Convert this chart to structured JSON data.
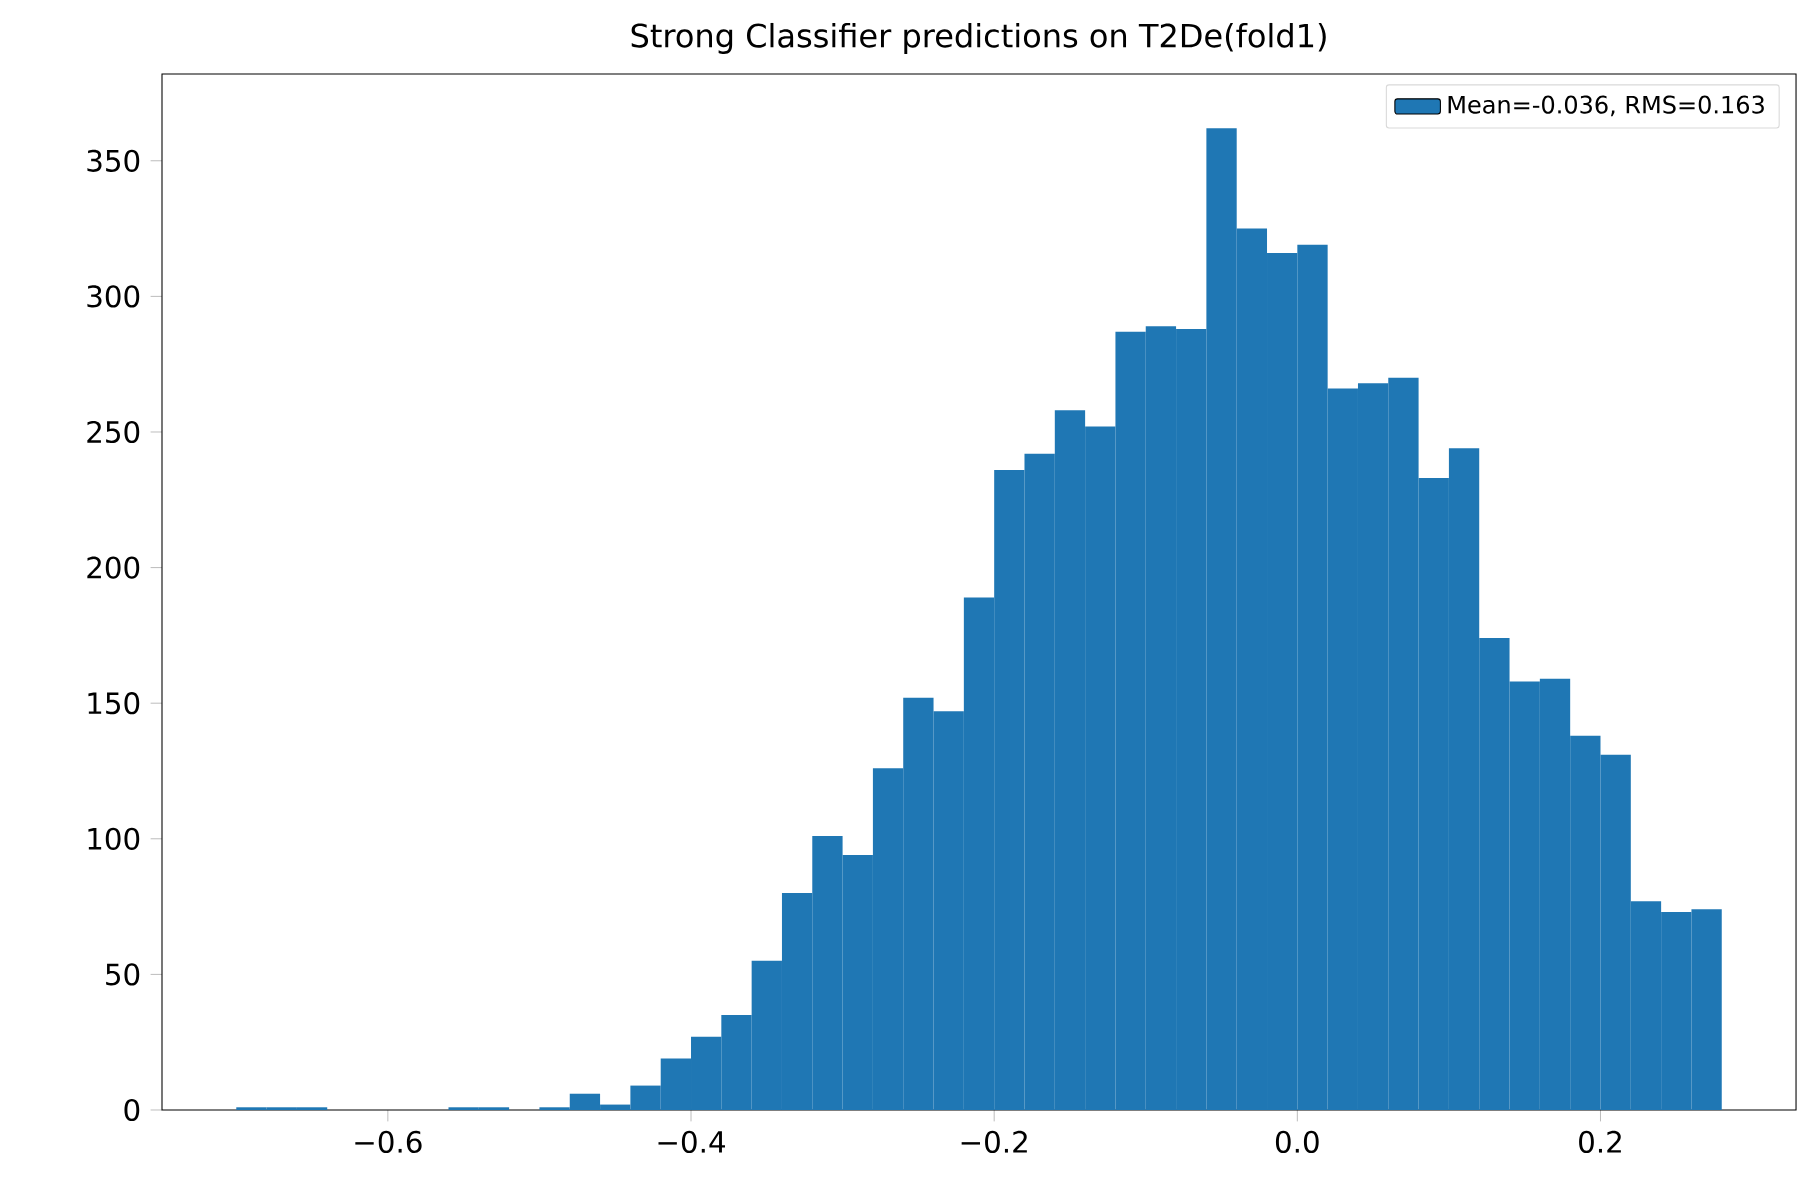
{
  "chart_data": {
    "type": "histogram",
    "title": "Strong Classifier predictions on T2De(fold1)",
    "bins": [
      -0.7,
      -0.68,
      -0.66,
      -0.64,
      -0.62,
      -0.6,
      -0.58,
      -0.56,
      -0.54,
      -0.52,
      -0.5,
      -0.48,
      -0.46,
      -0.44,
      -0.42,
      -0.4,
      -0.38,
      -0.36,
      -0.34,
      -0.32,
      -0.3,
      -0.28,
      -0.26,
      -0.24,
      -0.22,
      -0.2,
      -0.18,
      -0.16,
      -0.14,
      -0.12,
      -0.1,
      -0.08,
      -0.06,
      -0.04,
      -0.02,
      0.0,
      0.02,
      0.04,
      0.06,
      0.08,
      0.1,
      0.12,
      0.14,
      0.16,
      0.18,
      0.2,
      0.22,
      0.24,
      0.26,
      0.28
    ],
    "series": [
      {
        "name": "Mean=-0.036, RMS=0.163",
        "color": "#1f77b4",
        "values": [
          1,
          1,
          1,
          0,
          0,
          0,
          0,
          1,
          1,
          0,
          1,
          6,
          2,
          9,
          19,
          27,
          35,
          55,
          80,
          101,
          94,
          126,
          152,
          147,
          189,
          236,
          242,
          258,
          252,
          287,
          289,
          288,
          362,
          325,
          316,
          319,
          266,
          268,
          270,
          233,
          244,
          174,
          158,
          159,
          138,
          131,
          77,
          73,
          74
        ]
      }
    ],
    "xlim": [
      -0.749,
      0.329
    ],
    "ylim": [
      0,
      382
    ],
    "xticks": [
      {
        "value": -0.6,
        "label": "−0.6"
      },
      {
        "value": -0.4,
        "label": "−0.4"
      },
      {
        "value": -0.2,
        "label": "−0.2"
      },
      {
        "value": 0.0,
        "label": "0.0"
      },
      {
        "value": 0.2,
        "label": "0.2"
      }
    ],
    "yticks": [
      0,
      50,
      100,
      150,
      200,
      250,
      300,
      350
    ],
    "legend": "top right"
  }
}
